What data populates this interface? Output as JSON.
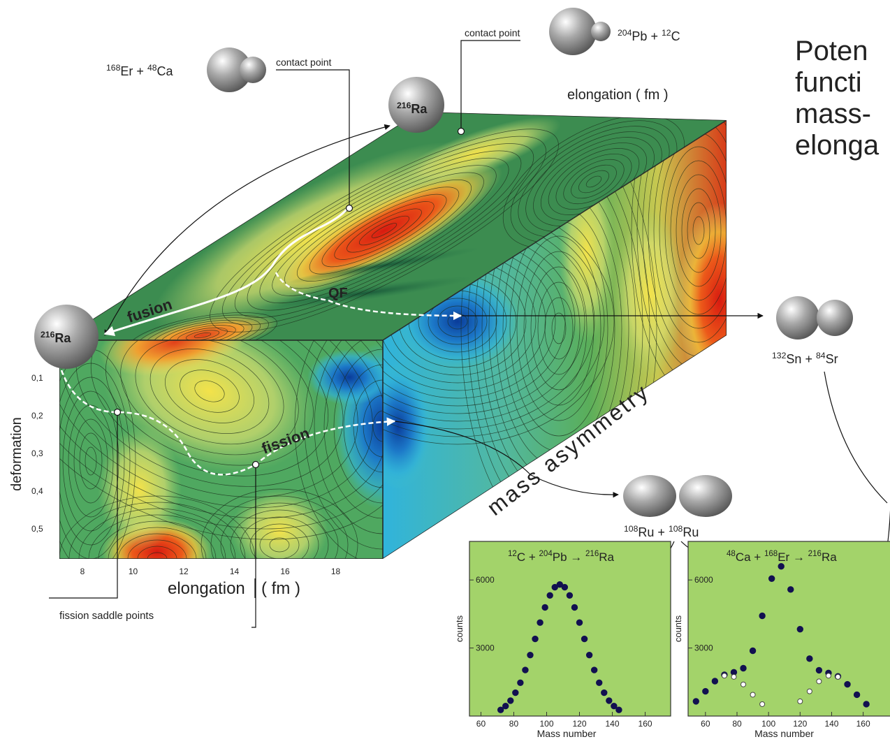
{
  "title_lines": [
    "Poten",
    "functi",
    "mass-",
    "elonga"
  ],
  "labels": {
    "contact_point_left": "contact point",
    "contact_point_right": "contact point",
    "elongation_top": "elongation  ( fm )",
    "elongation_bottom": "elongation",
    "elongation_bottom_unit": "( fm )",
    "deformation": "deformation",
    "mass_asymmetry": "mass asymmetry",
    "fusion": "fusion",
    "qf": "QF",
    "fission": "fission",
    "saddle_points": "fission  saddle points"
  },
  "deformation_ticks": [
    "0,1",
    "0,2",
    "0,3",
    "0,4",
    "0,5"
  ],
  "elongation_ticks": [
    "8",
    "10",
    "12",
    "14",
    "16",
    "18"
  ],
  "nuclei": {
    "reaction_er_ca": [
      {
        "sup": "168"
      },
      {
        "text": "Er + "
      },
      {
        "sup": "48"
      },
      {
        "text": "Ca"
      }
    ],
    "reaction_pb_c": [
      {
        "sup": "204"
      },
      {
        "text": "Pb + "
      },
      {
        "sup": "12"
      },
      {
        "text": "C"
      }
    ],
    "ra_top": [
      {
        "sup": "216"
      },
      {
        "text": "Ra"
      }
    ],
    "ra_left": [
      {
        "sup": "216"
      },
      {
        "text": "Ra"
      }
    ],
    "sn_sr": [
      {
        "sup": "132"
      },
      {
        "text": "Sn + "
      },
      {
        "sup": "84"
      },
      {
        "text": "Sr"
      }
    ],
    "ru_ru": [
      {
        "sup": "108"
      },
      {
        "text": "Ru + "
      },
      {
        "sup": "108"
      },
      {
        "text": "Ru"
      }
    ]
  },
  "charts": [
    {
      "type": "scatter",
      "title_parts": [
        {
          "sup": "12"
        },
        {
          "text": "C + "
        },
        {
          "sup": "204"
        },
        {
          "text": "Pb → "
        },
        {
          "sup": "216"
        },
        {
          "text": "Ra"
        }
      ],
      "x_label": "Mass number",
      "y_label": "counts",
      "xlim": [
        53,
        167
      ],
      "ylim": [
        0,
        7700
      ],
      "xticks": [
        60,
        80,
        100,
        120,
        140,
        160
      ],
      "yticks": [
        3000,
        6000
      ],
      "series": [
        {
          "style": "filled",
          "x": [
            72,
            75,
            78,
            81,
            84,
            87,
            90,
            93,
            96,
            99,
            102,
            105,
            108,
            111,
            114,
            117,
            120,
            123,
            126,
            129,
            132,
            135,
            138,
            141,
            144
          ],
          "values": [
            270,
            440,
            680,
            1030,
            1470,
            2030,
            2690,
            3400,
            4120,
            4790,
            5320,
            5680,
            5800,
            5680,
            5320,
            4790,
            4120,
            3400,
            2690,
            2030,
            1470,
            1030,
            680,
            440,
            270
          ]
        }
      ]
    },
    {
      "type": "scatter",
      "title_parts": [
        {
          "sup": "48"
        },
        {
          "text": "Ca + "
        },
        {
          "sup": "168"
        },
        {
          "text": "Er → "
        },
        {
          "sup": "216"
        },
        {
          "text": "Ra"
        }
      ],
      "x_label": "Mass number",
      "y_label": "counts",
      "xlim": [
        49,
        177
      ],
      "ylim": [
        0,
        7700
      ],
      "xticks": [
        60,
        80,
        100,
        120,
        140,
        160
      ],
      "yticks": [
        3000,
        6000
      ],
      "series": [
        {
          "style": "filled",
          "x": [
            54,
            60,
            66,
            72,
            78,
            84,
            90,
            96,
            102,
            108,
            114,
            120,
            126,
            132,
            138,
            144,
            150,
            156,
            162
          ],
          "values": [
            650,
            1090,
            1540,
            1820,
            1930,
            2110,
            2880,
            4420,
            6060,
            6600,
            5580,
            3830,
            2530,
            2020,
            1900,
            1750,
            1400,
            940,
            525
          ]
        },
        {
          "style": "open",
          "x": [
            72,
            78,
            84,
            90,
            96,
            120,
            126,
            132,
            138,
            144
          ],
          "values": [
            1780,
            1730,
            1395,
            940,
            525,
            650,
            1090,
            1530,
            1780,
            1730
          ]
        }
      ]
    }
  ]
}
